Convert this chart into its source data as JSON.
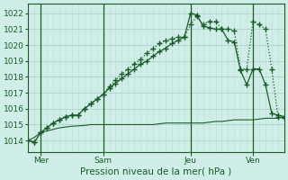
{
  "xlabel": "Pression niveau de la mer( hPa )",
  "bg_color": "#d0eee8",
  "grid_color_major": "#a8ccc0",
  "grid_color_minor": "#bcddd5",
  "line_color": "#1a5c28",
  "ylim": [
    1013.3,
    1022.6
  ],
  "yticks": [
    1014,
    1015,
    1016,
    1017,
    1018,
    1019,
    1020,
    1021,
    1022
  ],
  "xtick_labels": [
    "Mer",
    "Sam",
    "Jeu",
    "Ven"
  ],
  "xtick_positions": [
    2,
    12,
    26,
    36
  ],
  "vline_positions": [
    2,
    12,
    26,
    36
  ],
  "total_points": 42,
  "series1_x": [
    0,
    1,
    2,
    3,
    4,
    5,
    6,
    7,
    8,
    9,
    10,
    11,
    12,
    13,
    14,
    15,
    16,
    17,
    18,
    19,
    20,
    21,
    22,
    23,
    24,
    25,
    26,
    27,
    28,
    29,
    30,
    31,
    32,
    33,
    34,
    35,
    36,
    37,
    38,
    39,
    40,
    41
  ],
  "series1_y": [
    1014.0,
    1013.9,
    1014.5,
    1014.8,
    1015.1,
    1015.3,
    1015.5,
    1015.6,
    1015.6,
    1016.0,
    1016.3,
    1016.6,
    1016.9,
    1017.3,
    1017.6,
    1017.9,
    1018.2,
    1018.5,
    1018.8,
    1019.0,
    1019.3,
    1019.6,
    1019.8,
    1020.1,
    1020.3,
    1020.5,
    1022.0,
    1021.9,
    1021.2,
    1021.1,
    1021.0,
    1021.0,
    1020.3,
    1020.2,
    1018.4,
    1017.5,
    1018.5,
    1018.5,
    1017.5,
    1015.7,
    1015.6,
    1015.5
  ],
  "series2_x": [
    0,
    1,
    2,
    3,
    4,
    5,
    6,
    7,
    8,
    9,
    10,
    11,
    12,
    13,
    14,
    15,
    16,
    17,
    18,
    19,
    20,
    21,
    22,
    23,
    24,
    25,
    26,
    27,
    28,
    29,
    30,
    31,
    32,
    33,
    34,
    35,
    36,
    37,
    38,
    39,
    40,
    41
  ],
  "series2_y": [
    1014.0,
    1013.9,
    1014.5,
    1014.8,
    1015.1,
    1015.3,
    1015.5,
    1015.6,
    1015.6,
    1016.0,
    1016.3,
    1016.6,
    1016.9,
    1017.4,
    1017.8,
    1018.2,
    1018.5,
    1018.8,
    1019.1,
    1019.5,
    1019.8,
    1020.1,
    1020.3,
    1020.4,
    1020.5,
    1020.5,
    1021.3,
    1021.8,
    1021.3,
    1021.5,
    1021.5,
    1021.0,
    1021.0,
    1020.9,
    1018.5,
    1018.5,
    1021.5,
    1021.3,
    1021.0,
    1018.5,
    1015.5,
    1015.4
  ],
  "series3_x": [
    0,
    1,
    2,
    3,
    4,
    5,
    6,
    7,
    8,
    9,
    10,
    11,
    12,
    13,
    14,
    15,
    16,
    17,
    18,
    19,
    20,
    21,
    22,
    23,
    24,
    25,
    26,
    27,
    28,
    29,
    30,
    31,
    32,
    33,
    34,
    35,
    36,
    37,
    38,
    39,
    40,
    41
  ],
  "series3_y": [
    1014.0,
    1014.2,
    1014.5,
    1014.6,
    1014.7,
    1014.8,
    1014.85,
    1014.9,
    1014.92,
    1014.95,
    1015.0,
    1015.0,
    1015.0,
    1015.0,
    1015.0,
    1015.0,
    1015.0,
    1015.0,
    1015.0,
    1015.0,
    1015.0,
    1015.05,
    1015.1,
    1015.1,
    1015.1,
    1015.1,
    1015.1,
    1015.1,
    1015.1,
    1015.15,
    1015.2,
    1015.2,
    1015.25,
    1015.3,
    1015.3,
    1015.3,
    1015.3,
    1015.35,
    1015.4,
    1015.4,
    1015.4,
    1015.5
  ]
}
